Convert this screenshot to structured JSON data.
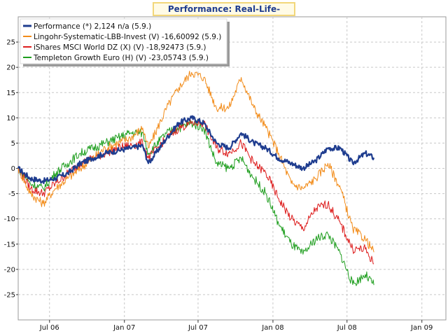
{
  "chart_data": {
    "type": "line",
    "title": "Performance: Real-Life-Depot",
    "xlabel": "",
    "ylabel": "",
    "ylim": [
      -30,
      30
    ],
    "xlim": [
      "2006-04-15",
      "2009-03-01"
    ],
    "yticks": [
      25,
      20,
      15,
      10,
      5,
      0,
      -5,
      -10,
      -15,
      -20,
      -25
    ],
    "xticks": [
      {
        "label": "Jul 06",
        "date": "2006-07-01"
      },
      {
        "label": "Jan 07",
        "date": "2007-01-01"
      },
      {
        "label": "Jul 07",
        "date": "2007-07-01"
      },
      {
        "label": "Jan 08",
        "date": "2008-01-01"
      },
      {
        "label": "Jul 08",
        "date": "2008-07-01"
      },
      {
        "label": "Jan 09",
        "date": "2009-01-01"
      }
    ],
    "grid": true,
    "legend_position": "top-left",
    "series": [
      {
        "name": "Performance (*) 2,124 n/a (5.9.)",
        "color": "#1f3d8f",
        "points": [
          [
            "2006-04-15",
            0
          ],
          [
            "2006-05-15",
            -2
          ],
          [
            "2006-06-15",
            -2.5
          ],
          [
            "2006-07-15",
            -2
          ],
          [
            "2006-08-15",
            -1
          ],
          [
            "2006-09-15",
            1
          ],
          [
            "2006-10-15",
            2
          ],
          [
            "2006-11-15",
            3
          ],
          [
            "2006-12-15",
            3.5
          ],
          [
            "2007-01-15",
            4
          ],
          [
            "2007-02-15",
            4.5
          ],
          [
            "2007-03-01",
            1
          ],
          [
            "2007-04-15",
            6
          ],
          [
            "2007-05-15",
            9
          ],
          [
            "2007-06-15",
            10
          ],
          [
            "2007-07-15",
            9
          ],
          [
            "2007-08-15",
            5
          ],
          [
            "2007-09-15",
            4
          ],
          [
            "2007-10-15",
            7
          ],
          [
            "2007-11-15",
            5
          ],
          [
            "2007-12-15",
            4
          ],
          [
            "2008-01-15",
            2
          ],
          [
            "2008-02-15",
            1
          ],
          [
            "2008-03-15",
            0
          ],
          [
            "2008-04-15",
            1.5
          ],
          [
            "2008-05-15",
            4
          ],
          [
            "2008-06-15",
            4
          ],
          [
            "2008-07-15",
            1
          ],
          [
            "2008-08-15",
            3
          ],
          [
            "2008-09-05",
            2.1
          ]
        ]
      },
      {
        "name": "Lingohr-Systematic-LBB-Invest (V) -16,60092 (5.9.)",
        "color": "#f28c1a",
        "points": [
          [
            "2006-04-15",
            0
          ],
          [
            "2006-05-15",
            -5
          ],
          [
            "2006-06-15",
            -7
          ],
          [
            "2006-07-15",
            -4
          ],
          [
            "2006-08-15",
            -2
          ],
          [
            "2006-09-15",
            0
          ],
          [
            "2006-10-15",
            2
          ],
          [
            "2006-11-15",
            4
          ],
          [
            "2006-12-15",
            5
          ],
          [
            "2007-01-15",
            6
          ],
          [
            "2007-02-15",
            8
          ],
          [
            "2007-03-01",
            4
          ],
          [
            "2007-04-15",
            12
          ],
          [
            "2007-05-15",
            16
          ],
          [
            "2007-06-15",
            19
          ],
          [
            "2007-07-15",
            18
          ],
          [
            "2007-08-15",
            12
          ],
          [
            "2007-09-15",
            12
          ],
          [
            "2007-10-15",
            18
          ],
          [
            "2007-11-15",
            12
          ],
          [
            "2007-12-15",
            8
          ],
          [
            "2008-01-15",
            3
          ],
          [
            "2008-02-15",
            -3
          ],
          [
            "2008-03-15",
            -4
          ],
          [
            "2008-04-15",
            -2
          ],
          [
            "2008-05-15",
            1
          ],
          [
            "2008-06-15",
            -4
          ],
          [
            "2008-07-15",
            -12
          ],
          [
            "2008-08-15",
            -14
          ],
          [
            "2008-09-05",
            -16.6
          ]
        ]
      },
      {
        "name": "iShares MSCI World DZ (X) (V) -18,92473 (5.9.)",
        "color": "#dd1d1d",
        "points": [
          [
            "2006-04-15",
            0
          ],
          [
            "2006-05-15",
            -4
          ],
          [
            "2006-06-15",
            -5
          ],
          [
            "2006-07-15",
            -3
          ],
          [
            "2006-08-15",
            -1
          ],
          [
            "2006-09-15",
            1
          ],
          [
            "2006-10-15",
            2
          ],
          [
            "2006-11-15",
            3
          ],
          [
            "2006-12-15",
            4
          ],
          [
            "2007-01-15",
            4.5
          ],
          [
            "2007-02-15",
            5
          ],
          [
            "2007-03-01",
            2
          ],
          [
            "2007-04-15",
            6
          ],
          [
            "2007-05-15",
            8
          ],
          [
            "2007-06-15",
            9
          ],
          [
            "2007-07-15",
            9
          ],
          [
            "2007-08-15",
            4
          ],
          [
            "2007-09-15",
            3
          ],
          [
            "2007-10-15",
            5
          ],
          [
            "2007-11-15",
            1
          ],
          [
            "2007-12-15",
            -1
          ],
          [
            "2008-01-15",
            -6
          ],
          [
            "2008-02-15",
            -10
          ],
          [
            "2008-03-15",
            -12
          ],
          [
            "2008-04-15",
            -8
          ],
          [
            "2008-05-15",
            -7
          ],
          [
            "2008-06-15",
            -11
          ],
          [
            "2008-07-15",
            -16
          ],
          [
            "2008-08-15",
            -16
          ],
          [
            "2008-09-05",
            -18.9
          ]
        ]
      },
      {
        "name": "Templeton Growth Euro (H) (V) -23,05743 (5.9.)",
        "color": "#1e9e1e",
        "points": [
          [
            "2006-04-15",
            0
          ],
          [
            "2006-05-15",
            -3
          ],
          [
            "2006-06-15",
            -4
          ],
          [
            "2006-07-15",
            -1
          ],
          [
            "2006-08-15",
            1
          ],
          [
            "2006-09-15",
            3
          ],
          [
            "2006-10-15",
            4
          ],
          [
            "2006-11-15",
            5
          ],
          [
            "2006-12-15",
            6
          ],
          [
            "2007-01-15",
            7
          ],
          [
            "2007-02-15",
            7
          ],
          [
            "2007-03-01",
            3
          ],
          [
            "2007-04-15",
            7
          ],
          [
            "2007-05-15",
            8
          ],
          [
            "2007-06-15",
            9
          ],
          [
            "2007-07-15",
            8
          ],
          [
            "2007-08-15",
            1
          ],
          [
            "2007-09-15",
            0
          ],
          [
            "2007-10-15",
            2
          ],
          [
            "2007-11-15",
            -2
          ],
          [
            "2007-12-15",
            -5
          ],
          [
            "2008-01-15",
            -11
          ],
          [
            "2008-02-15",
            -15
          ],
          [
            "2008-03-15",
            -17
          ],
          [
            "2008-04-15",
            -14
          ],
          [
            "2008-05-15",
            -13
          ],
          [
            "2008-06-15",
            -17
          ],
          [
            "2008-07-15",
            -23
          ],
          [
            "2008-08-15",
            -21
          ],
          [
            "2008-09-05",
            -23.1
          ]
        ]
      }
    ]
  }
}
